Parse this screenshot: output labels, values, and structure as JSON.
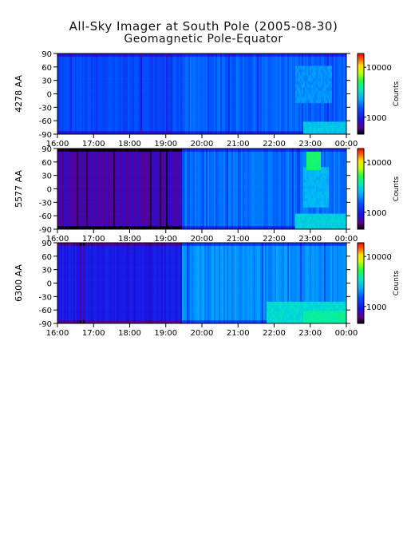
{
  "title": "All-Sky Imager at South Pole (2005-08-30)",
  "subtitle": "Geomagnetic Pole-Equator",
  "chart_data": [
    {
      "type": "heatmap",
      "ylabel": "4278 AA",
      "x_ticks": [
        "16:00",
        "17:00",
        "18:00",
        "19:00",
        "20:00",
        "21:00",
        "22:00",
        "23:00",
        "00:00"
      ],
      "y_ticks": [
        90,
        60,
        30,
        0,
        -30,
        -60,
        -90
      ],
      "ylim": [
        -90,
        90
      ],
      "colorbar": {
        "label": "Counts",
        "ticks": [
          "10000",
          "1000"
        ],
        "scale": "log"
      },
      "xlim_hours": [
        16,
        24
      ],
      "base_level": 0.3,
      "onset_hour": 19.5,
      "post_onset_level": 0.34,
      "features": [
        {
          "hour_start": 22.8,
          "hour_end": 24.0,
          "lat_min": -90,
          "lat_max": -60,
          "level": 0.48
        },
        {
          "hour_start": 22.6,
          "hour_end": 23.6,
          "lat_min": -20,
          "lat_max": 60,
          "level": 0.4
        }
      ]
    },
    {
      "type": "heatmap",
      "ylabel": "5577 AA",
      "x_ticks": [
        "16:00",
        "17:00",
        "18:00",
        "19:00",
        "20:00",
        "21:00",
        "22:00",
        "23:00",
        "00:00"
      ],
      "y_ticks": [
        90,
        60,
        30,
        0,
        -30,
        -60,
        -90
      ],
      "ylim": [
        -90,
        90
      ],
      "colorbar": {
        "label": "Counts",
        "ticks": [
          "10000",
          "1000"
        ],
        "scale": "log"
      },
      "xlim_hours": [
        16,
        24
      ],
      "base_level": 0.12,
      "onset_hour": 19.45,
      "post_onset_level": 0.36,
      "features": [
        {
          "hour_start": 22.9,
          "hour_end": 23.3,
          "lat_min": 45,
          "lat_max": 80,
          "level": 0.62
        },
        {
          "hour_start": 22.8,
          "hour_end": 23.5,
          "lat_min": -40,
          "lat_max": 45,
          "level": 0.45
        },
        {
          "hour_start": 22.6,
          "hour_end": 24.0,
          "lat_min": -90,
          "lat_max": -55,
          "level": 0.5
        }
      ]
    },
    {
      "type": "heatmap",
      "ylabel": "6300 AA",
      "x_ticks": [
        "16:00",
        "17:00",
        "18:00",
        "19:00",
        "20:00",
        "21:00",
        "22:00",
        "23:00",
        "00:00"
      ],
      "y_ticks": [
        90,
        60,
        30,
        0,
        -30,
        -60,
        -90
      ],
      "ylim": [
        -90,
        90
      ],
      "colorbar": {
        "label": "Counts",
        "ticks": [
          "10000",
          "1000"
        ],
        "scale": "log"
      },
      "xlim_hours": [
        16,
        24
      ],
      "base_level": 0.2,
      "onset_hour": 19.45,
      "post_onset_level": 0.4,
      "features": [
        {
          "hour_start": 21.8,
          "hour_end": 24.0,
          "lat_min": -90,
          "lat_max": -40,
          "level": 0.52
        },
        {
          "hour_start": 22.8,
          "hour_end": 24.0,
          "lat_min": -90,
          "lat_max": -60,
          "level": 0.58
        }
      ]
    }
  ]
}
